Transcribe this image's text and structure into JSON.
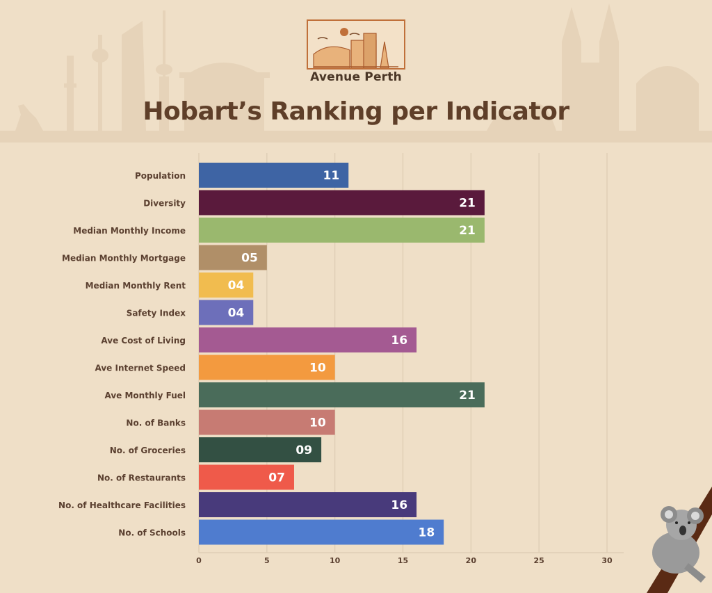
{
  "brand": {
    "name": "Avenue Perth"
  },
  "chart_data": {
    "type": "bar",
    "orientation": "horizontal",
    "title": "Hobart’s Ranking per Indicator",
    "categories": [
      "Population",
      "Diversity",
      "Median Monthly Income",
      "Median Monthly Mortgage",
      "Median Monthly Rent",
      "Safety Index",
      "Ave Cost of Living",
      "Ave Internet Speed",
      "Ave Monthly Fuel",
      "No. of Banks",
      "No. of Groceries",
      "No. of Restaurants",
      "No. of Healthcare Facilities",
      "No. of Schools"
    ],
    "values": [
      11,
      21,
      21,
      5,
      4,
      4,
      16,
      10,
      21,
      10,
      9,
      7,
      16,
      18
    ],
    "value_labels": [
      "11",
      "21",
      "21",
      "05",
      "04",
      "04",
      "16",
      "10",
      "21",
      "10",
      "09",
      "07",
      "16",
      "18"
    ],
    "colors": [
      "#3e64a4",
      "#5a1a3c",
      "#9ab86e",
      "#b08f68",
      "#f1bc4f",
      "#6d6fba",
      "#a45a92",
      "#f39a3f",
      "#4a6c5a",
      "#c77b73",
      "#335043",
      "#ef5a4a",
      "#483a7b",
      "#4f7ccf"
    ],
    "xlim": [
      0,
      30
    ],
    "xticks": [
      0,
      5,
      10,
      15,
      20,
      25,
      30
    ],
    "grid": true,
    "legend": "none"
  },
  "colors": {
    "background": "#efdfc7",
    "title": "#5f3f29",
    "axis_text": "#5b4030",
    "gridline": "#dccbb2",
    "bar_label": "#ffffff"
  }
}
